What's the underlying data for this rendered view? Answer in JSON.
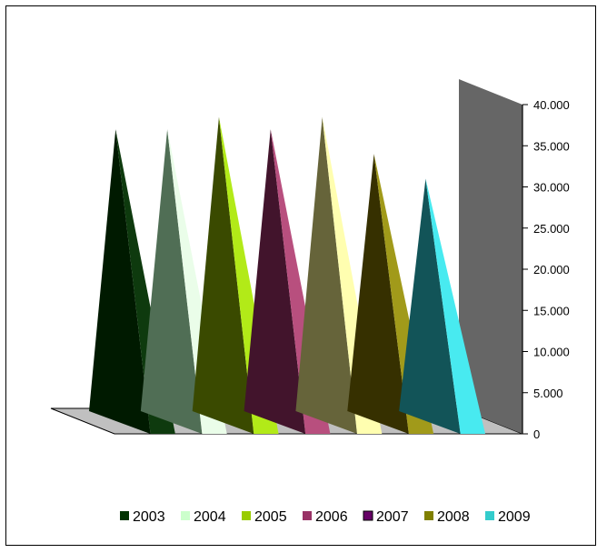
{
  "chart_data": {
    "type": "bar",
    "subtype": "3d-pyramid",
    "title": "",
    "xlabel": "",
    "ylabel": "",
    "ylim": [
      0,
      40000
    ],
    "y_ticks": [
      "0",
      "5.000",
      "10.000",
      "15.000",
      "20.000",
      "25.000",
      "30.000",
      "35.000",
      "40.000"
    ],
    "y_axis_side": "right",
    "legend_position": "bottom",
    "grid": false,
    "series": [
      {
        "name": "2003",
        "value": 37000,
        "color": "#0e3a0e",
        "dark": "#001a00"
      },
      {
        "name": "2004",
        "value": 37000,
        "color": "#eafde9",
        "dark": "#506e55"
      },
      {
        "name": "2005",
        "value": 38500,
        "color": "#b2ea18",
        "dark": "#3a4a00"
      },
      {
        "name": "2006",
        "value": 37000,
        "color": "#b84f7e",
        "dark": "#42142c"
      },
      {
        "name": "2007",
        "value": 38500,
        "color": "#fffeb0",
        "dark": "#66643a"
      },
      {
        "name": "2008",
        "value": 34000,
        "color": "#a19a1a",
        "dark": "#363000"
      },
      {
        "name": "2009",
        "value": 31000,
        "color": "#48eaf0",
        "dark": "#125458"
      }
    ],
    "legend_colors": [
      "#003300",
      "#ccffcc",
      "#99cc00",
      "#993366",
      "#660066",
      "#808000",
      "#33cccc"
    ],
    "wall_color": "#666666",
    "floor_color": "#c0c0c0"
  }
}
